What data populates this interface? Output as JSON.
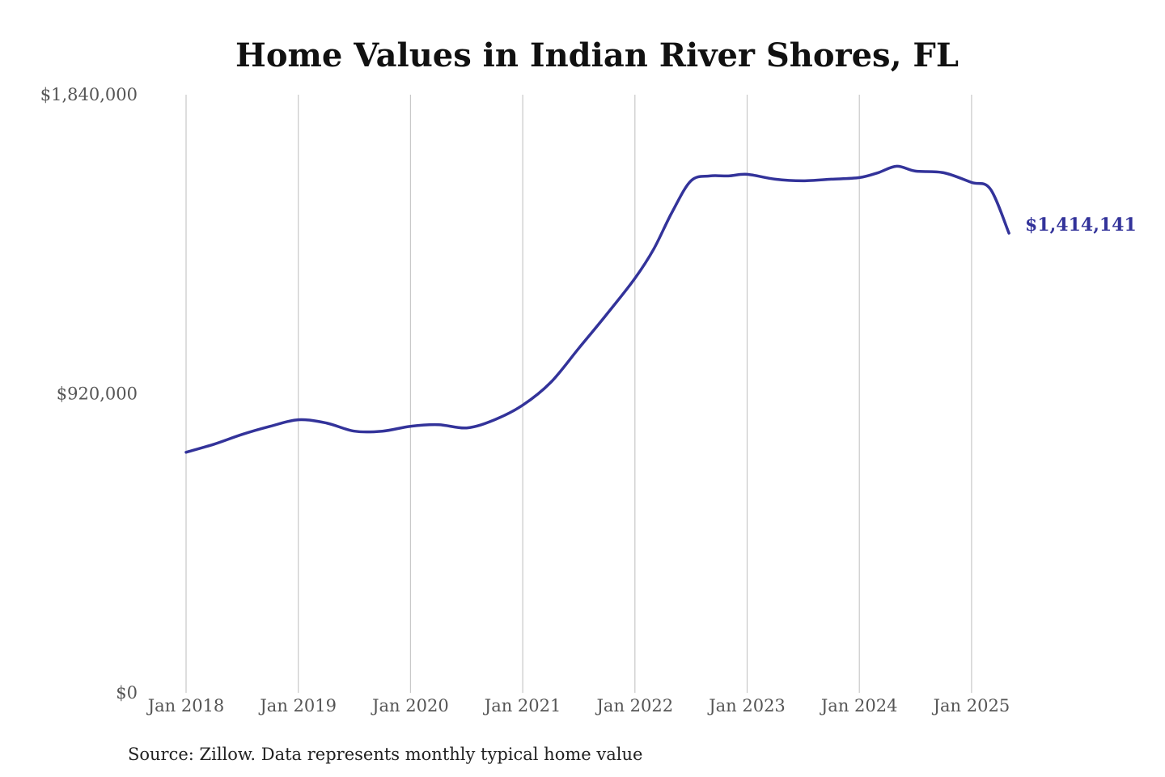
{
  "chart_data": {
    "type": "line",
    "title": "Home Values in Indian River Shores, FL",
    "xlabel": "",
    "ylabel": "",
    "ylim": [
      0,
      1840000
    ],
    "y_ticks": [
      {
        "value": 0,
        "label": "$0"
      },
      {
        "value": 920000,
        "label": "$920,000"
      },
      {
        "value": 1840000,
        "label": "$1,840,000"
      }
    ],
    "x_ticks": [
      {
        "value": 2018.0,
        "label": "Jan 2018"
      },
      {
        "value": 2019.0,
        "label": "Jan 2019"
      },
      {
        "value": 2020.0,
        "label": "Jan 2020"
      },
      {
        "value": 2021.0,
        "label": "Jan 2021"
      },
      {
        "value": 2022.0,
        "label": "Jan 2022"
      },
      {
        "value": 2023.0,
        "label": "Jan 2023"
      },
      {
        "value": 2024.0,
        "label": "Jan 2024"
      },
      {
        "value": 2025.0,
        "label": "Jan 2025"
      }
    ],
    "xlim": [
      2018.0,
      2025.333
    ],
    "grid": "vertical",
    "legend": "none",
    "series": [
      {
        "color": "#33339a",
        "x": [
          2018.0,
          2018.25,
          2018.5,
          2018.75,
          2019.0,
          2019.25,
          2019.5,
          2019.75,
          2020.0,
          2020.25,
          2020.5,
          2020.75,
          2021.0,
          2021.25,
          2021.5,
          2021.75,
          2022.0,
          2022.167,
          2022.333,
          2022.5,
          2022.667,
          2022.833,
          2023.0,
          2023.25,
          2023.5,
          2023.75,
          2024.0,
          2024.167,
          2024.333,
          2024.5,
          2024.75,
          2025.0,
          2025.167,
          2025.333
        ],
        "values": [
          740000,
          765000,
          795000,
          820000,
          840000,
          830000,
          805000,
          805000,
          820000,
          825000,
          815000,
          840000,
          885000,
          955000,
          1060000,
          1165000,
          1275000,
          1365000,
          1480000,
          1575000,
          1590000,
          1590000,
          1595000,
          1580000,
          1575000,
          1580000,
          1585000,
          1600000,
          1620000,
          1605000,
          1600000,
          1570000,
          1550000,
          1414141
        ]
      }
    ],
    "end_label": "$1,414,141",
    "source_note": "Source: Zillow. Data represents monthly typical home value"
  }
}
